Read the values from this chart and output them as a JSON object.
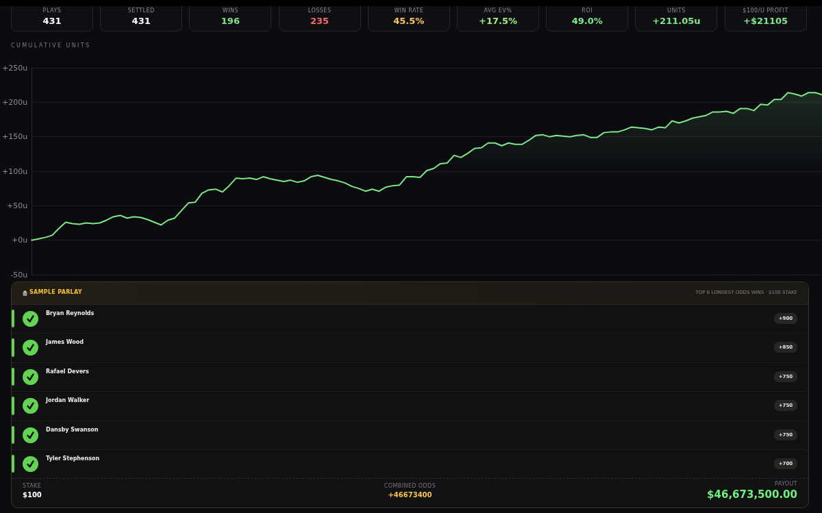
{
  "chart_data": [
    {
      "type": "other",
      "categories": [
        "PLAYS",
        "SETTLED",
        "WINS",
        "LOSSES",
        "WIN RATE",
        "AVG EV%",
        "ROI",
        "UNITS",
        "$100/U PROFIT"
      ],
      "value_labels": [
        "431",
        "431",
        "196",
        "235",
        "45.5%",
        "+17.5%",
        "49.0%",
        "+211.05u",
        "+$21105"
      ]
    },
    {
      "type": "area",
      "title": "CUMULATIVE UNITS",
      "color": "#7ee787",
      "categories": [
        null,
        null,
        null,
        null,
        null,
        null,
        null,
        null,
        null,
        null,
        null,
        null,
        null,
        null,
        null,
        null,
        null,
        null,
        null,
        null,
        null,
        null,
        null,
        null,
        null,
        null,
        null,
        null,
        null,
        null,
        null,
        null,
        null,
        null,
        null,
        null,
        null,
        null,
        null,
        null,
        null,
        null,
        null,
        null,
        null,
        null,
        null,
        null,
        null,
        null,
        null,
        null,
        null,
        null,
        null,
        null,
        null,
        null,
        null,
        null,
        null,
        null,
        null,
        null,
        null,
        null,
        null,
        null,
        null,
        null,
        null,
        null,
        null,
        null,
        null,
        null,
        null,
        null,
        null,
        null,
        null,
        null,
        null,
        null,
        null,
        null,
        null,
        null,
        null,
        null,
        null,
        null,
        null,
        null,
        null,
        null,
        null,
        null,
        null,
        null,
        null,
        null,
        null,
        null,
        null,
        null,
        null,
        null,
        null,
        null,
        null,
        null,
        null,
        null,
        null,
        null,
        null
      ],
      "values": [
        0,
        2,
        4,
        7,
        17,
        26,
        24,
        23,
        25,
        24,
        25,
        29,
        34,
        36,
        32,
        34,
        33,
        30,
        26,
        22,
        29,
        32,
        43,
        54,
        55,
        68,
        73,
        74,
        70,
        79,
        90,
        89,
        90,
        88,
        92,
        89,
        87,
        85,
        87,
        84,
        86,
        92,
        94,
        91,
        88,
        86,
        83,
        78,
        75,
        71,
        74,
        71,
        77,
        79,
        80,
        92,
        92,
        91,
        101,
        104,
        111,
        112,
        123,
        120,
        126,
        133,
        134,
        141,
        141,
        137,
        141,
        139,
        139,
        145,
        152,
        153,
        150,
        152,
        151,
        150,
        152,
        153,
        149,
        149,
        156,
        157,
        157,
        160,
        164,
        163,
        162,
        160,
        164,
        163,
        173,
        170,
        173,
        177,
        179,
        181,
        186,
        186,
        187,
        184,
        191,
        191,
        188,
        197,
        196,
        204,
        204,
        214,
        212,
        209,
        214,
        214,
        211
      ],
      "ylim": [
        -50,
        250
      ],
      "yticks": [
        {
          "value": -50,
          "label": "-50u"
        },
        {
          "value": 0,
          "label": "+0u"
        },
        {
          "value": 50,
          "label": "+50u"
        },
        {
          "value": 100,
          "label": "+100u"
        },
        {
          "value": 150,
          "label": "+150u"
        },
        {
          "value": 200,
          "label": "+200u"
        },
        {
          "value": 250,
          "label": "+250u"
        }
      ],
      "grid": "y",
      "tick_labels": "y"
    },
    {
      "type": "other",
      "title": "SAMPLE PARLAY",
      "subtitle": "TOP 6 LONGEST ODDS WINS · $100 STAKE",
      "color": "#62d352",
      "categories": [
        "Bryan Reynolds",
        "James Wood",
        "Rafael Devers",
        "Jordan Walker",
        "Dansby Swanson",
        "Tyler Stephenson"
      ],
      "value_labels": [
        "+900",
        "+850",
        "+750",
        "+750",
        "+750",
        "+700"
      ],
      "annotations": [
        "STAKE",
        "$100",
        "COMBINED ODDS",
        "+46673400",
        "PAYOUT",
        "$46,673,500.00"
      ]
    }
  ]
}
